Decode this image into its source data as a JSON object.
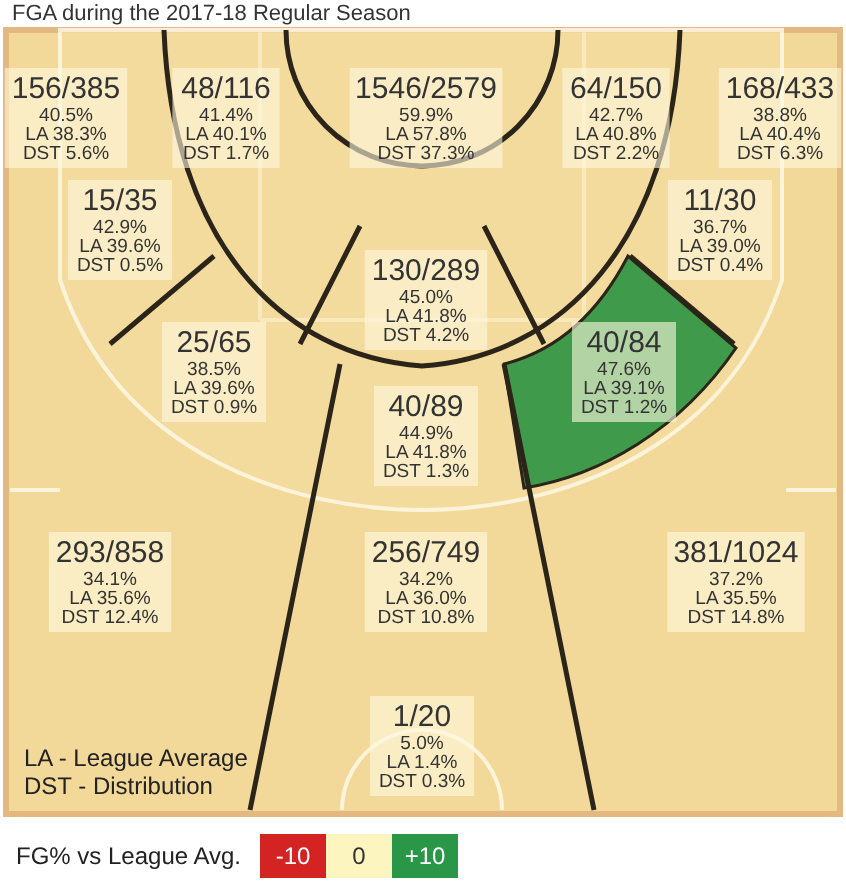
{
  "chart_data": {
    "type": "other",
    "title": "FGA during the 2017-18 Regular Season",
    "categories": [
      "156/385",
      "48/116",
      "1546/2579",
      "64/150",
      "168/433",
      "15/35",
      "11/30",
      "130/289",
      "25/65",
      "40/84",
      "40/89",
      "293/858",
      "256/749",
      "381/1024",
      "1/20"
    ],
    "series": [
      {
        "values": [
          40.5,
          41.4,
          59.9,
          42.7,
          38.8,
          42.9,
          36.7,
          45.0,
          38.5,
          47.6,
          44.9,
          34.1,
          34.2,
          37.2,
          5.0
        ],
        "value_labels": [
          "40.5%",
          "41.4%",
          "59.9%",
          "42.7%",
          "38.8%",
          "42.9%",
          "36.7%",
          "45.0%",
          "38.5%",
          "47.6%",
          "44.9%",
          "34.1%",
          "34.2%",
          "37.2%",
          "5.0%"
        ]
      },
      {
        "colors": [
          "#f2d99a",
          "#f2d99a",
          "#f2d99a",
          "#f2d99a",
          "#f2d99a",
          "#f2d99a",
          "#f2d99a",
          "#f2d99a",
          "#f2d99a",
          "#3f9b4b",
          "#f2d99a",
          "#f2d99a",
          "#f2d99a",
          "#f2d99a",
          "#f2d99a"
        ],
        "values": [
          38.3,
          40.1,
          57.8,
          40.8,
          40.4,
          39.6,
          39.0,
          41.8,
          39.6,
          39.1,
          41.8,
          35.6,
          36.0,
          35.5,
          1.4
        ],
        "value_labels": [
          "LA 38.3%",
          "LA 40.1%",
          "LA 57.8%",
          "LA 40.8%",
          "LA 40.4%",
          "LA 39.6%",
          "LA 39.0%",
          "LA 41.8%",
          "LA 39.6%",
          "LA 39.1%",
          "LA 41.8%",
          "LA 35.6%",
          "LA 36.0%",
          "LA 35.5%",
          "LA 1.4%"
        ]
      },
      {
        "values": [
          5.6,
          1.7,
          37.3,
          2.2,
          6.3,
          0.5,
          0.4,
          4.2,
          0.9,
          1.2,
          1.3,
          12.4,
          10.8,
          14.8,
          0.3
        ],
        "value_labels": [
          "DST 5.6%",
          "DST 1.7%",
          "DST 37.3%",
          "DST 2.2%",
          "DST 6.3%",
          "DST 0.5%",
          "DST 0.4%",
          "DST 4.2%",
          "DST 0.9%",
          "DST 1.2%",
          "DST 1.3%",
          "DST 12.4%",
          "DST 10.8%",
          "DST 14.8%",
          "DST 0.3%"
        ]
      }
    ],
    "annotations": [
      "LA - League Average",
      "DST - Distribution",
      "FG% vs League Avg.",
      "-10",
      "0",
      "+10"
    ]
  }
}
